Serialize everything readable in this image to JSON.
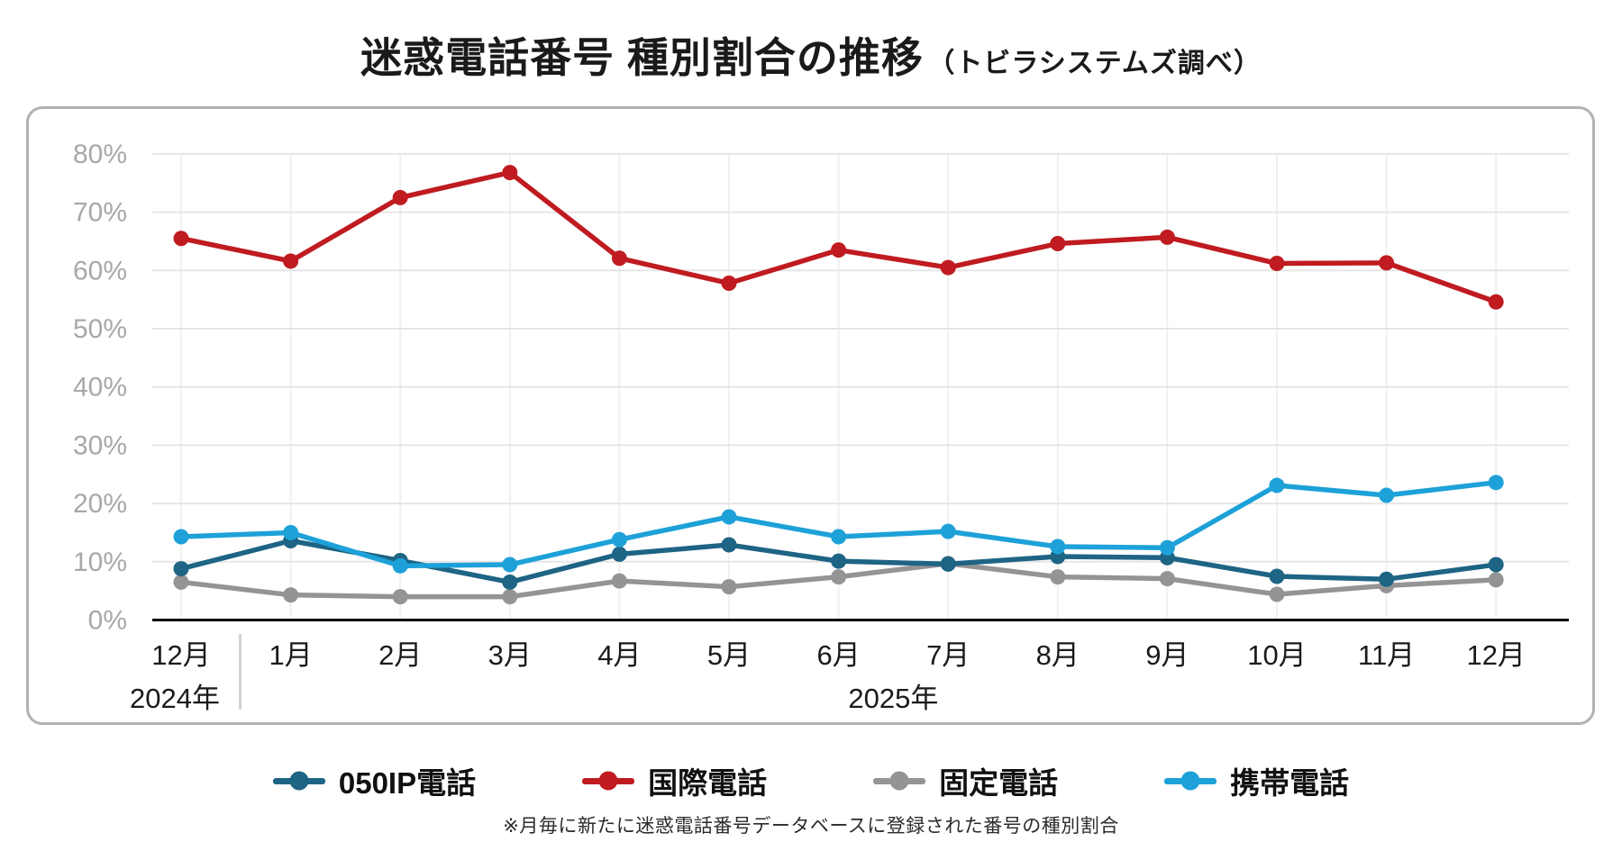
{
  "title": {
    "main": "迷惑電話番号 種別割合の推移",
    "source": "（トビラシステムズ調べ）"
  },
  "footnote": "※月毎に新たに迷惑電話番号データベースに登録された番号の種別割合",
  "chart_data": {
    "type": "line",
    "title": "迷惑電話番号 種別割合の推移（トビラシステムズ調べ）",
    "categories": [
      "12月",
      "1月",
      "2月",
      "3月",
      "4月",
      "5月",
      "6月",
      "7月",
      "8月",
      "9月",
      "10月",
      "11月",
      "12月"
    ],
    "year_labels": [
      {
        "text": "2024年",
        "covers": [
          "12月"
        ]
      },
      {
        "text": "2025年",
        "covers": [
          "1月",
          "2月",
          "3月",
          "4月",
          "5月",
          "6月",
          "7月",
          "8月",
          "9月",
          "10月",
          "11月",
          "12月"
        ]
      }
    ],
    "series": [
      {
        "name": "050IP電話",
        "key": "050ip-phone",
        "color": "#1e6484",
        "values": [
          8.8,
          13.6,
          10.2,
          6.5,
          11.3,
          12.9,
          10.1,
          9.6,
          10.9,
          10.7,
          7.5,
          7.0,
          9.5
        ]
      },
      {
        "name": "国際電話",
        "key": "international-call",
        "color": "#bf1b20",
        "values": [
          65.5,
          61.6,
          72.5,
          76.8,
          62.1,
          57.8,
          63.5,
          60.5,
          64.6,
          65.7,
          61.2,
          61.3,
          54.6
        ]
      },
      {
        "name": "固定電話",
        "key": "landline-phone",
        "color": "#949494",
        "values": [
          6.5,
          4.3,
          4.0,
          4.0,
          6.7,
          5.7,
          7.4,
          9.7,
          7.4,
          7.1,
          4.4,
          5.9,
          6.9
        ]
      },
      {
        "name": "携帯電話",
        "key": "mobile-phone",
        "color": "#1da1d8",
        "values": [
          14.3,
          15.0,
          9.3,
          9.5,
          13.8,
          17.7,
          14.3,
          15.2,
          12.6,
          12.4,
          23.1,
          21.4,
          23.6
        ]
      }
    ],
    "draw_order": [
      2,
      1,
      0,
      3
    ],
    "xlabel": "",
    "ylabel": "",
    "ylim": [
      0,
      80
    ],
    "yticks": [
      "0%",
      "10%",
      "20%",
      "30%",
      "40%",
      "50%",
      "60%",
      "70%",
      "80%"
    ],
    "grid": true,
    "legend_position": "bottom"
  },
  "colors": {
    "axis": "#000000",
    "h_grid": "#e6e6e6",
    "v_grid": "#f0f0f0",
    "y_tick_text": "#a8a8a8",
    "x_tick_text": "#1a1a1a",
    "separator": "#c9c9c9",
    "panel_border": "#b2b2b2"
  }
}
